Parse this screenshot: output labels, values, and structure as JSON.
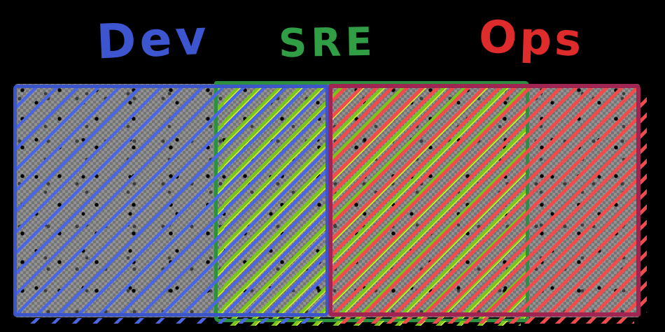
{
  "page": {
    "background": "#000000",
    "description": "Hand-drawn diagram of three overlapping hatched rectangles showing shared responsibility between Dev, SRE and Ops"
  },
  "labels": {
    "dev": {
      "text": "Dev",
      "color": "#3d55cf"
    },
    "sre": {
      "text": "SRE",
      "color": "#2f9e44"
    },
    "ops": {
      "text": "Ops",
      "color": "#de2b2b"
    }
  },
  "regions": {
    "dev": {
      "name": "Dev",
      "border_color": "#3c55c8",
      "hatch_color": "#4a66e2"
    },
    "sre": {
      "name": "SRE",
      "border_color": "#2e8f40",
      "hatch_color": "#79c41d",
      "fleck_color": "#dcee3a"
    },
    "ops": {
      "name": "Ops",
      "border_color": "#a02552",
      "hatch_color": "#f14c4c"
    }
  },
  "overlaps": [
    {
      "between": [
        "Dev",
        "SRE"
      ]
    },
    {
      "between": [
        "SRE",
        "Ops"
      ]
    }
  ],
  "texture": {
    "checker_light": "#929292",
    "checker_dark": "#747474",
    "speckle_dark": "#000000",
    "speckle_mid": "#3d3d3d"
  }
}
